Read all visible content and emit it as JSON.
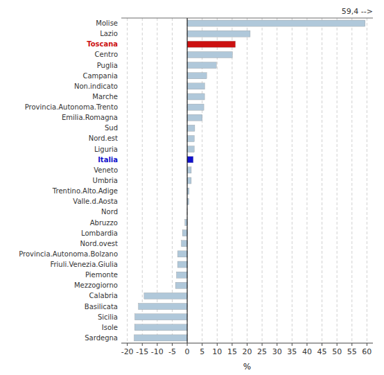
{
  "chart_data": {
    "type": "bar",
    "orientation": "horizontal",
    "categories": [
      "Molise",
      "Lazio",
      "Toscana",
      "Centro",
      "Puglia",
      "Campania",
      "Non.indicato",
      "Marche",
      "Provincia.Autonoma.Trento",
      "Emilia.Romagna",
      "Sud",
      "Nord.est",
      "Liguria",
      "Italia",
      "Veneto",
      "Umbria",
      "Trentino.Alto.Adige",
      "Valle.d.Aosta",
      "Nord",
      "Abruzzo",
      "Lombardia",
      "Nord.ovest",
      "Provincia.Autonoma.Bolzano",
      "Friuli.Venezia.Giulia",
      "Piemonte",
      "Mezzogiorno",
      "Calabria",
      "Basilicata",
      "Sicilia",
      "Isole",
      "Sardegna"
    ],
    "values": [
      59.41,
      21.03,
      16.1,
      15.09,
      9.74,
      6.5,
      5.85,
      5.8,
      5.56,
      5.03,
      2.52,
      2.38,
      2.36,
      2.02,
      1.37,
      1.36,
      0.65,
      0.53,
      -0.02,
      -0.77,
      -1.6,
      -1.97,
      -3.22,
      -3.23,
      -3.58,
      -3.92,
      -14.39,
      -16.3,
      -17.5,
      -17.57,
      -17.73
    ],
    "colors": [
      "#b0c8da",
      "#b0c8da",
      "#cc1111",
      "#b0c8da",
      "#b0c8da",
      "#b0c8da",
      "#b0c8da",
      "#b0c8da",
      "#b0c8da",
      "#b0c8da",
      "#b0c8da",
      "#b0c8da",
      "#b0c8da",
      "#1111cc",
      "#b0c8da",
      "#b0c8da",
      "#b0c8da",
      "#b0c8da",
      "#b0c8da",
      "#b0c8da",
      "#b0c8da",
      "#b0c8da",
      "#b0c8da",
      "#b0c8da",
      "#b0c8da",
      "#b0c8da",
      "#b0c8da",
      "#b0c8da",
      "#b0c8da",
      "#b0c8da",
      "#b0c8da"
    ],
    "xlim": [
      -22,
      62
    ],
    "xticks": [
      -20,
      -15,
      -10,
      -5,
      0,
      5,
      10,
      15,
      20,
      25,
      30,
      35,
      40,
      45,
      50,
      55,
      60
    ],
    "xlabel": "%",
    "annotation": "59,4 -->",
    "grid": true
  }
}
